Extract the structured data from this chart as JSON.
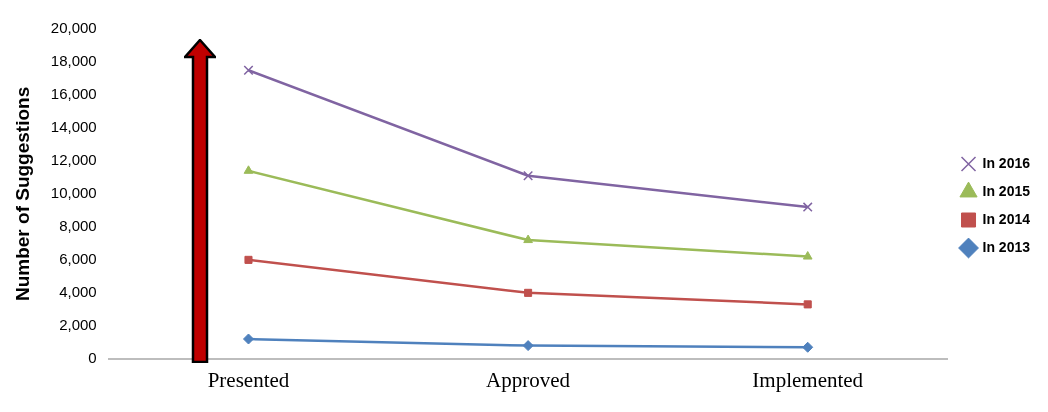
{
  "chart_data": {
    "type": "line",
    "ylabel": "Number of Suggestions",
    "categories": [
      "Presented",
      "Approved",
      "Implemented"
    ],
    "series": [
      {
        "name": "In 2016",
        "color": "#8064a2",
        "marker": "cross",
        "values": [
          17500,
          11100,
          9200
        ]
      },
      {
        "name": "In 2015",
        "color": "#9bbb59",
        "marker": "triangle",
        "values": [
          11400,
          7200,
          6200
        ]
      },
      {
        "name": "In 2014",
        "color": "#c0504d",
        "marker": "square",
        "values": [
          6000,
          4000,
          3300
        ]
      },
      {
        "name": "In 2013",
        "color": "#4f81bd",
        "marker": "diamond",
        "values": [
          1200,
          800,
          700
        ]
      }
    ],
    "ylim": [
      0,
      20000
    ],
    "yticks": [
      0,
      {
        "value": 2000,
        "label": "2,000"
      },
      {
        "value": 4000,
        "label": "4,000"
      },
      {
        "value": 6000,
        "label": "6,000"
      },
      {
        "value": 8000,
        "label": "8,000"
      },
      {
        "value": 10000,
        "label": "10,000"
      },
      {
        "value": 12000,
        "label": "12,000"
      },
      {
        "value": 14000,
        "label": "14,000"
      },
      {
        "value": 16000,
        "label": "16,000"
      },
      {
        "value": 18000,
        "label": "18,000"
      },
      {
        "value": 20000,
        "label": "20,000"
      }
    ],
    "grid": false,
    "legend": "right"
  }
}
